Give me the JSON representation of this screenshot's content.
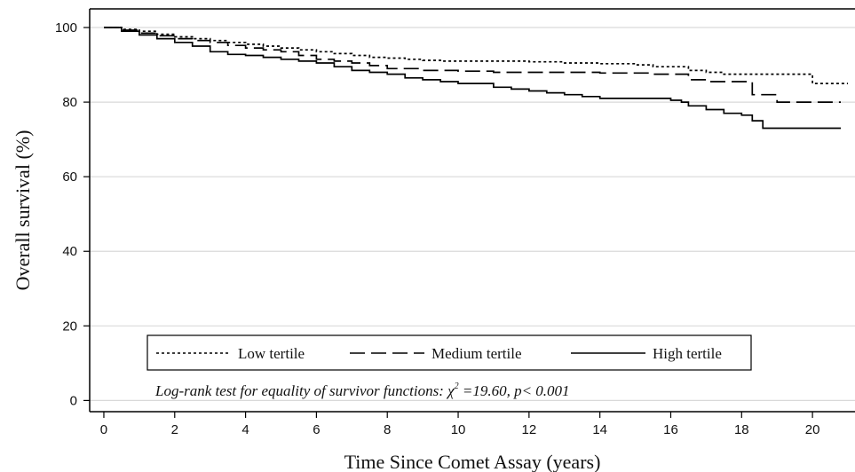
{
  "chart_data": {
    "type": "line",
    "xlabel": "Time Since Comet Assay (years)",
    "ylabel": "Overall survival (%)",
    "xlim": [
      -0.4,
      21.2
    ],
    "ylim": [
      -3,
      105
    ],
    "x_ticks": [
      0,
      2,
      4,
      6,
      8,
      10,
      12,
      14,
      16,
      18,
      20
    ],
    "y_ticks": [
      0,
      20,
      40,
      60,
      80,
      100
    ],
    "grid": "horizontal",
    "legend_position": "bottom-inside",
    "step": true,
    "series": [
      {
        "name": "Low tertile",
        "style": "dotted",
        "x": [
          0,
          0.5,
          1,
          1.5,
          2,
          2.5,
          3,
          3.5,
          4,
          4.5,
          5,
          5.5,
          6,
          6.5,
          7,
          7.5,
          8,
          8.5,
          9,
          9.5,
          10,
          11,
          12,
          13,
          14,
          15,
          15.5,
          16,
          16.5,
          17,
          17.5,
          18,
          18.5,
          19,
          19.3,
          20,
          21
        ],
        "y": [
          100,
          99.5,
          99,
          98.2,
          97.5,
          97,
          96.5,
          96,
          95.5,
          95,
          94.5,
          94,
          93.5,
          93,
          92.5,
          92,
          91.8,
          91.5,
          91.2,
          91,
          91,
          91,
          90.8,
          90.5,
          90.3,
          90,
          89.5,
          89.5,
          88.5,
          88,
          87.5,
          87.5,
          87.5,
          87.5,
          87.5,
          85,
          85
        ]
      },
      {
        "name": "Medium tertile",
        "style": "dashed",
        "x": [
          0,
          0.5,
          1,
          1.5,
          2,
          2.5,
          3,
          3.5,
          4,
          4.5,
          5,
          5.5,
          6,
          6.5,
          7,
          7.5,
          8,
          9,
          10,
          11,
          12,
          13,
          14,
          15,
          15.5,
          16,
          16.5,
          17,
          17.5,
          18,
          18.3,
          18.5,
          19,
          19.3,
          20,
          20.8
        ],
        "y": [
          100,
          99.3,
          98.5,
          97.8,
          97,
          96.5,
          96,
          95.2,
          94.5,
          94,
          93.5,
          92.5,
          91.5,
          91,
          90.5,
          89.8,
          89,
          88.5,
          88.3,
          88,
          88,
          88,
          87.8,
          87.8,
          87.5,
          87.5,
          86,
          85.5,
          85.5,
          85.5,
          82,
          82,
          80,
          80,
          80,
          80
        ]
      },
      {
        "name": "High tertile",
        "style": "solid",
        "x": [
          0,
          0.5,
          1,
          1.5,
          2,
          2.5,
          3,
          3.5,
          4,
          4.5,
          5,
          5.5,
          6,
          6.5,
          7,
          7.5,
          8,
          8.5,
          9,
          9.5,
          10,
          10.5,
          11,
          11.5,
          12,
          12.5,
          13,
          13.5,
          14,
          14.5,
          15,
          15.5,
          16,
          16.3,
          16.5,
          17,
          17.5,
          18,
          18.3,
          18.6,
          19,
          20,
          20.8
        ],
        "y": [
          100,
          99,
          98,
          97,
          96,
          95,
          93.5,
          92.8,
          92.5,
          92,
          91.5,
          91,
          90.5,
          89.5,
          88.5,
          88,
          87.5,
          86.5,
          86,
          85.5,
          85,
          85,
          84,
          83.5,
          83,
          82.5,
          82,
          81.5,
          81,
          81,
          81,
          81,
          80.5,
          80,
          79,
          78,
          77,
          76.5,
          75,
          73,
          73,
          73,
          73
        ]
      }
    ],
    "annotation_prefix": "Log-rank test for equality of survivor functions: ",
    "annotation_chi": "χ",
    "annotation_sup": "2",
    "annotation_suffix": " =19.60, p< 0.001"
  }
}
